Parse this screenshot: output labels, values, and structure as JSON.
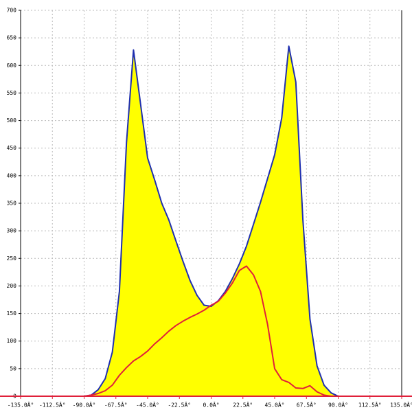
{
  "chart_data": {
    "type": "line",
    "x": [
      -90,
      -85,
      -80,
      -75,
      -70,
      -65,
      -60,
      -55,
      -50,
      -45,
      -40,
      -35,
      -30,
      -25,
      -20,
      -15,
      -10,
      -5,
      0,
      5,
      10,
      15,
      20,
      25,
      30,
      35,
      40,
      45,
      50,
      55,
      60,
      65,
      70,
      75,
      80,
      85,
      90
    ],
    "series": [
      {
        "color": "#1f2fb0",
        "fill": "#ffff00",
        "values": [
          0,
          2,
          12,
          32,
          80,
          190,
          460,
          628,
          530,
          432,
          392,
          350,
          320,
          282,
          245,
          210,
          183,
          165,
          163,
          173,
          190,
          213,
          240,
          272,
          312,
          352,
          395,
          438,
          505,
          635,
          570,
          320,
          140,
          55,
          20,
          6,
          0
        ]
      },
      {
        "color": "#e0203a",
        "values": [
          0,
          2,
          5,
          10,
          20,
          38,
          52,
          64,
          72,
          82,
          95,
          106,
          118,
          128,
          136,
          143,
          149,
          156,
          165,
          172,
          187,
          205,
          228,
          236,
          220,
          190,
          130,
          50,
          30,
          25,
          15,
          14,
          19,
          8,
          2,
          0,
          0
        ]
      }
    ],
    "xlim": [
      -135,
      135
    ],
    "xticks": [
      {
        "value": -135,
        "label": "-135.0Â°"
      },
      {
        "value": -112.5,
        "label": "-112.5Â°"
      },
      {
        "value": -90,
        "label": "-90.0Â°"
      },
      {
        "value": -67.5,
        "label": "-67.5Â°"
      },
      {
        "value": -45,
        "label": "-45.0Â°"
      },
      {
        "value": -22.5,
        "label": "-22.5Â°"
      },
      {
        "value": 0,
        "label": "0.0Â°"
      },
      {
        "value": 22.5,
        "label": "22.5Â°"
      },
      {
        "value": 45,
        "label": "45.0Â°"
      },
      {
        "value": 67.5,
        "label": "67.5Â°"
      },
      {
        "value": 90,
        "label": "90.0Â°"
      },
      {
        "value": 112.5,
        "label": "112.5Â°"
      },
      {
        "value": 135,
        "label": "135.0Â°"
      }
    ],
    "ylim": [
      0,
      700
    ],
    "yticks": [
      0,
      50,
      100,
      150,
      200,
      250,
      300,
      350,
      400,
      450,
      500,
      550,
      600,
      650,
      700
    ],
    "grid": true
  }
}
